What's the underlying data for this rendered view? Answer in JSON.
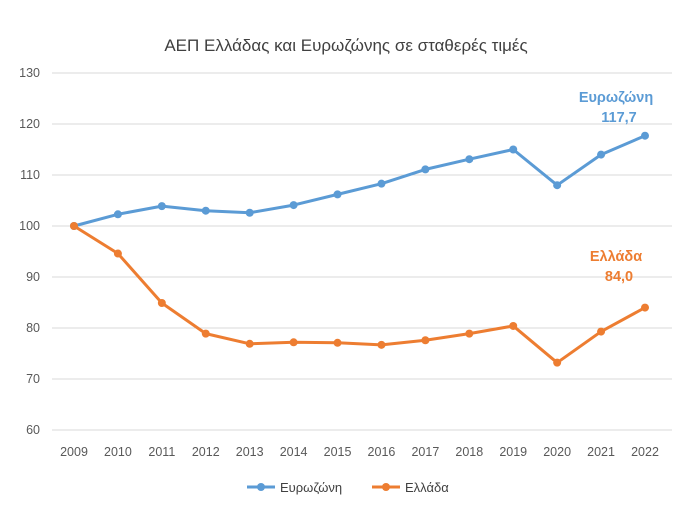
{
  "chart_data": {
    "type": "line",
    "title": "ΑΕΠ Ελλάδας και Ευρωζώνης σε σταθερές τιμές",
    "xlabel": "",
    "ylabel": "",
    "ylim": [
      60,
      130
    ],
    "yticks": [
      60,
      70,
      80,
      90,
      100,
      110,
      120,
      130
    ],
    "grid": true,
    "legend": "bottom",
    "categories": [
      "2009",
      "2010",
      "2011",
      "2012",
      "2013",
      "2014",
      "2015",
      "2016",
      "2017",
      "2018",
      "2019",
      "2020",
      "2021",
      "2022"
    ],
    "series": [
      {
        "name": "Ευρωζώνη",
        "color": "#5B9BD5",
        "values": [
          100,
          102.3,
          103.9,
          103.0,
          102.6,
          104.1,
          106.2,
          108.3,
          111.1,
          113.1,
          115.0,
          108.0,
          114.0,
          117.7
        ],
        "end_label": "Ευρωζώνη",
        "end_value_label": "117,7"
      },
      {
        "name": "Ελλάδα",
        "color": "#ED7D31",
        "values": [
          100,
          94.6,
          84.9,
          78.9,
          76.9,
          77.2,
          77.1,
          76.7,
          77.6,
          78.9,
          80.4,
          73.2,
          79.3,
          84.0
        ],
        "end_label": "Ελλάδα",
        "end_value_label": "84,0"
      }
    ]
  }
}
